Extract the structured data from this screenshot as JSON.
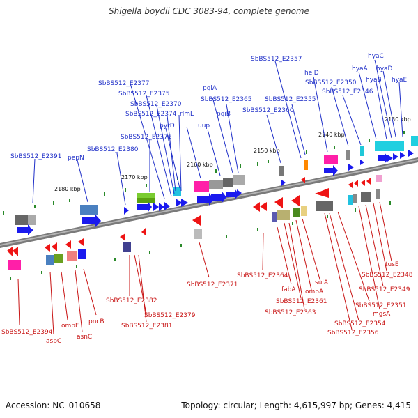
{
  "title": "Shigella boydii CDC 3083-94, complete genome",
  "footer": {
    "accession": "Accession: NC_010658",
    "summary": "Topology: circular; Length: 4,615,997 bp; Genes: 4,415"
  },
  "colors": {
    "forward_label": "#1f2fc8",
    "reverse_label": "#c81414",
    "forward_gene": "#1f1ff0",
    "reverse_gene": "#f01414",
    "backbone": "#777777"
  },
  "scale_labels": [
    "2180 kbp",
    "2170 kbp",
    "2160 kbp",
    "2150 kbp",
    "2140 kbp",
    "2130 kbp"
  ],
  "forward_genes": [
    "SbBS512_E2391",
    "pepN",
    "SbBS512_E2380",
    "SbBS512_E2376",
    "pyrD",
    "SbBS512_E2374",
    "rlmL",
    "SbBS512_E2370",
    "SbBS512_E2375",
    "SbBS512_E2377",
    "uup",
    "pqiB",
    "pqiA",
    "SbBS512_E2365",
    "SbBS512_E2360",
    "SbBS512_E2357",
    "SbBS512_E2355",
    "helD",
    "SbBS512_E2350",
    "SbBS512_E2346",
    "hyaA",
    "hyaB",
    "hyaC",
    "hyaD",
    "hyaE"
  ],
  "reverse_genes": [
    "SbBS512_E2394",
    "aspC",
    "ompF",
    "asnC",
    "pncB",
    "SbBS512_E2382",
    "SbBS512_E2379",
    "SbBS512_E2381",
    "SbBS512_E2371",
    "SbBS512_E2364",
    "fabA",
    "SbBS512_E2361",
    "SbBS512_E2363",
    "ompA",
    "sulA",
    "SbBS512_E2351",
    "SbBS512_E2354",
    "SbBS512_E2356",
    "mgsA",
    "SbBS512_E2349",
    "SbBS512_E2348",
    "tusE"
  ]
}
